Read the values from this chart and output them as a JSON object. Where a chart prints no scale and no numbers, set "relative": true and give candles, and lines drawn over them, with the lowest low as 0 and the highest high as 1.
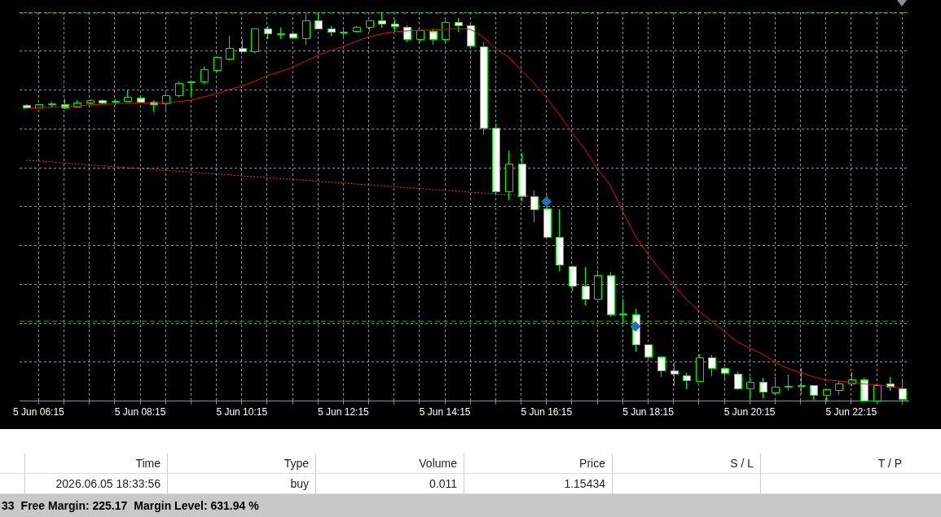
{
  "chart_data": {
    "type": "candlestick",
    "relative": true,
    "grid": true,
    "legend": false,
    "color": "#00ee00",
    "colors": [
      "#ffffff",
      "#000000",
      "#000000",
      "#ffffff",
      "#000000",
      "#000000",
      "#ffffff",
      "#000000",
      "#000000",
      "#ffffff",
      "#ffffff",
      "#000000",
      "#000000",
      "#000000",
      "#000000",
      "#000000",
      "#000000",
      "#ffffff",
      "#000000",
      "#ffffff",
      "#000000",
      "#ffffff",
      "#000000",
      "#ffffff",
      "#ffffff",
      "#000000",
      "#000000",
      "#000000",
      "#ffffff",
      "#ffffff",
      "#ffffff",
      "#000000",
      "#ffffff",
      "#000000",
      "#ffffff",
      "#ffffff",
      "#ffffff",
      "#ffffff",
      "#000000",
      "#ffffff",
      "#ffffff",
      "#ffffff",
      "#ffffff",
      "#ffffff",
      "#ffffff",
      "#000000",
      "#ffffff",
      "#000000",
      "#ffffff",
      "#ffffff",
      "#ffffff",
      "#ffffff",
      "#ffffff",
      "#000000",
      "#ffffff",
      "#ffffff",
      "#ffffff",
      "#000000",
      "#ffffff",
      "#000000",
      "#000000",
      "#000000",
      "#ffffff",
      "#000000",
      "#000000",
      "#000000",
      "#ffffff",
      "#000000",
      "#ffffff",
      "#ffffff"
    ],
    "categories": [
      null,
      "5 Jun 06:15",
      null,
      null,
      null,
      null,
      null,
      null,
      null,
      "5 Jun 08:15",
      null,
      null,
      null,
      null,
      null,
      null,
      null,
      "5 Jun 10:15",
      null,
      null,
      null,
      null,
      null,
      null,
      null,
      "5 Jun 12:15",
      null,
      null,
      null,
      null,
      null,
      null,
      null,
      "5 Jun 14:15",
      null,
      null,
      null,
      null,
      null,
      null,
      null,
      "5 Jun 16:15",
      null,
      null,
      null,
      null,
      null,
      null,
      null,
      "5 Jun 18:15",
      null,
      null,
      null,
      null,
      null,
      null,
      null,
      "5 Jun 20:15",
      null,
      null,
      null,
      null,
      null,
      null,
      null,
      "5 Jun 22:15",
      null,
      null,
      null,
      null
    ],
    "ohlc": [
      [
        0.762,
        0.764,
        0.753,
        0.755
      ],
      [
        0.755,
        0.764,
        0.755,
        0.764
      ],
      [
        0.763,
        0.77,
        0.759,
        0.765
      ],
      [
        0.764,
        0.778,
        0.753,
        0.755
      ],
      [
        0.757,
        0.774,
        0.757,
        0.768
      ],
      [
        0.768,
        0.776,
        0.766,
        0.774
      ],
      [
        0.774,
        0.776,
        0.766,
        0.768
      ],
      [
        0.77,
        0.776,
        0.764,
        0.771
      ],
      [
        0.772,
        0.799,
        0.772,
        0.782
      ],
      [
        0.78,
        0.787,
        0.768,
        0.77
      ],
      [
        0.77,
        0.774,
        0.747,
        0.764
      ],
      [
        0.766,
        0.791,
        0.747,
        0.787
      ],
      [
        0.787,
        0.822,
        0.782,
        0.818
      ],
      [
        0.82,
        0.824,
        0.787,
        0.821
      ],
      [
        0.822,
        0.86,
        0.818,
        0.854
      ],
      [
        0.851,
        0.885,
        0.849,
        0.885
      ],
      [
        0.881,
        0.939,
        0.879,
        0.908
      ],
      [
        0.908,
        0.931,
        0.9,
        0.9
      ],
      [
        0.9,
        0.958,
        0.898,
        0.958
      ],
      [
        0.958,
        0.964,
        0.933,
        0.946
      ],
      [
        0.946,
        0.96,
        0.933,
        0.946
      ],
      [
        0.946,
        0.952,
        0.933,
        0.935
      ],
      [
        0.933,
        0.994,
        0.918,
        0.979
      ],
      [
        0.979,
        1,
        0.958,
        0.958
      ],
      [
        0.958,
        0.964,
        0.941,
        0.95
      ],
      [
        0.95,
        0.956,
        0.937,
        0.95
      ],
      [
        0.952,
        0.964,
        0.95,
        0.962
      ],
      [
        0.962,
        0.979,
        0.952,
        0.979
      ],
      [
        0.979,
        0.998,
        0.962,
        0.971
      ],
      [
        0.971,
        0.981,
        0.952,
        0.964
      ],
      [
        0.962,
        0.967,
        0.925,
        0.931
      ],
      [
        0.931,
        0.954,
        0.925,
        0.954
      ],
      [
        0.952,
        0.958,
        0.918,
        0.931
      ],
      [
        0.931,
        0.979,
        0.925,
        0.975
      ],
      [
        0.975,
        0.985,
        0.952,
        0.967
      ],
      [
        0.967,
        0.969,
        0.912,
        0.914
      ],
      [
        0.912,
        0.923,
        0.688,
        0.703
      ],
      [
        0.703,
        0.713,
        0.538,
        0.54
      ],
      [
        0.54,
        0.644,
        0.519,
        0.611
      ],
      [
        0.611,
        0.638,
        0.517,
        0.527
      ],
      [
        0.527,
        0.542,
        0.462,
        0.494
      ],
      [
        0.496,
        0.529,
        0.423,
        0.423
      ],
      [
        0.423,
        0.494,
        0.337,
        0.351
      ],
      [
        0.347,
        0.349,
        0.285,
        0.297
      ],
      [
        0.297,
        0.345,
        0.249,
        0.264
      ],
      [
        0.262,
        0.337,
        0.262,
        0.324
      ],
      [
        0.324,
        0.333,
        0.22,
        0.224
      ],
      [
        0.226,
        0.262,
        0.203,
        0.226
      ],
      [
        0.224,
        0.238,
        0.13,
        0.146
      ],
      [
        0.146,
        0.146,
        0.107,
        0.115
      ],
      [
        0.115,
        0.115,
        0.065,
        0.079
      ],
      [
        0.079,
        0.1,
        0.042,
        0.071
      ],
      [
        0.067,
        0.073,
        0.033,
        0.054
      ],
      [
        0.052,
        0.121,
        0.052,
        0.113
      ],
      [
        0.113,
        0.119,
        0.067,
        0.086
      ],
      [
        0.086,
        0.088,
        0.059,
        0.073
      ],
      [
        0.071,
        0.077,
        0.031,
        0.033
      ],
      [
        0.033,
        0.063,
        0.008,
        0.05
      ],
      [
        0.05,
        0.059,
        0.01,
        0.025
      ],
      [
        0.023,
        0.063,
        0.019,
        0.036
      ],
      [
        0.037,
        0.069,
        0.029,
        0.038
      ],
      [
        0.04,
        0.086,
        0.021,
        0.04
      ],
      [
        0.04,
        0.042,
        0.006,
        0.015
      ],
      [
        0.015,
        0.031,
        0.002,
        0.031
      ],
      [
        0.029,
        0.052,
        0.017,
        0.046
      ],
      [
        0.046,
        0.075,
        0.042,
        0.056
      ],
      [
        0.056,
        0.059,
        0,
        0.002
      ],
      [
        0.002,
        0.046,
        0,
        0.042
      ],
      [
        0.046,
        0.063,
        0.029,
        0.036
      ],
      [
        0.033,
        0.052,
        0.006,
        0.006
      ]
    ],
    "series": [
      {
        "type": "line",
        "color": "#e01010",
        "values": [
          0.753,
          0.754,
          0.756,
          0.757,
          0.758,
          0.762,
          0.763,
          0.764,
          0.766,
          0.766,
          0.766,
          0.768,
          0.77,
          0.774,
          0.782,
          0.791,
          0.801,
          0.81,
          0.822,
          0.837,
          0.847,
          0.858,
          0.874,
          0.889,
          0.902,
          0.912,
          0.925,
          0.937,
          0.944,
          0.95,
          0.952,
          0.954,
          0.954,
          0.956,
          0.958,
          0.956,
          0.937,
          0.906,
          0.885,
          0.851,
          0.818,
          0.78,
          0.738,
          0.69,
          0.649,
          0.598,
          0.556,
          0.487,
          0.425,
          0.377,
          0.335,
          0.299,
          0.262,
          0.232,
          0.205,
          0.18,
          0.153,
          0.136,
          0.121,
          0.1,
          0.084,
          0.073,
          0.063,
          0.054,
          0.052,
          0.048,
          0.044,
          0.042,
          0.038,
          0.033
        ]
      },
      {
        "type": "line",
        "color": "#c8503a",
        "line_style": "dotted",
        "values": [
          0.619,
          0.617,
          0.615,
          0.612,
          0.61,
          0.607,
          0.605,
          0.603,
          0.6,
          0.598,
          0.596,
          0.593,
          0.591,
          0.589,
          0.586,
          0.584,
          0.582,
          0.579,
          0.577,
          0.575,
          0.572,
          0.57,
          0.568,
          0.565,
          0.563,
          0.561,
          0.558,
          0.556,
          0.554,
          0.551,
          0.549,
          0.547,
          0.544,
          0.542,
          0.54,
          0.537,
          0.535,
          0.533,
          0.53,
          0.528,
          0.526,
          null,
          null,
          null,
          null,
          null,
          null,
          null,
          null,
          null,
          null,
          null,
          null,
          null,
          null,
          null,
          null,
          null,
          null,
          null,
          null,
          null,
          null,
          null,
          null,
          null,
          null,
          null,
          null,
          null
        ]
      },
      {
        "type": "scatter",
        "color": "#1e6fc0",
        "marker": "diamond",
        "values": [
          null,
          null,
          null,
          null,
          null,
          null,
          null,
          null,
          null,
          null,
          null,
          null,
          null,
          null,
          null,
          null,
          null,
          null,
          null,
          null,
          null,
          null,
          null,
          null,
          null,
          null,
          null,
          null,
          null,
          null,
          null,
          null,
          null,
          null,
          null,
          null,
          null,
          null,
          null,
          null,
          null,
          0.513,
          null,
          null,
          null,
          null,
          null,
          null,
          0.192,
          null,
          null,
          null,
          null,
          null,
          null,
          null,
          null,
          null,
          null,
          null,
          null,
          null,
          null,
          null,
          null,
          null,
          null,
          null,
          null,
          null
        ]
      }
    ],
    "ref_lines": [
      {
        "axis": "y",
        "value": 0.998,
        "color": "#33cc33",
        "line_style": "dashed"
      },
      {
        "axis": "y",
        "value": 0.205,
        "color": "#2e9e2e",
        "line_style": "dashed"
      }
    ],
    "annotations": [
      "Time",
      "Type",
      "Volume",
      "Price",
      "S / L",
      "T / P",
      "2026.06.05 18:33:56",
      "buy",
      "0.011",
      "1.15434",
      "33",
      "Free Margin: 225.17",
      "Margin Level: 631.94 %"
    ]
  }
}
